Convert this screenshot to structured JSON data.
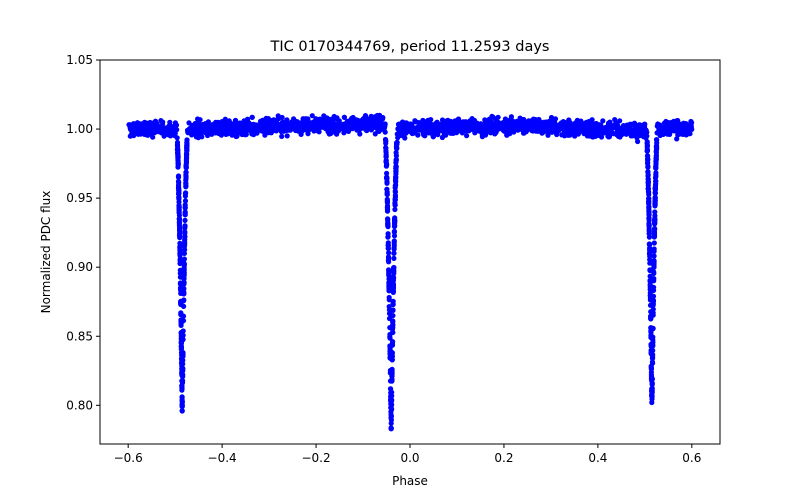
{
  "chart_data": {
    "type": "scatter",
    "title": "TIC 0170344769, period 11.2593 days",
    "xlabel": "Phase",
    "ylabel": "Normalized PDC flux",
    "xlim": [
      -0.66,
      0.66
    ],
    "ylim": [
      0.772,
      1.05
    ],
    "xticks": [
      -0.6,
      -0.4,
      -0.2,
      0.0,
      0.2,
      0.4,
      0.6
    ],
    "xtick_labels": [
      "−0.6",
      "−0.4",
      "−0.2",
      "0.0",
      "0.2",
      "0.4",
      "0.6"
    ],
    "yticks": [
      0.8,
      0.85,
      0.9,
      0.95,
      1.0,
      1.05
    ],
    "ytick_labels": [
      "0.80",
      "0.85",
      "0.90",
      "0.95",
      "1.00",
      "1.05"
    ],
    "grid": false,
    "series": [
      {
        "name": "PDC flux",
        "color": "#0000ff",
        "phase_range": [
          -0.6,
          0.6
        ],
        "baseline": 1.0,
        "scatter_sigma": 0.007,
        "eclipses": [
          {
            "center": -0.485,
            "min_flux": 0.798,
            "half_width": 0.012
          },
          {
            "center": -0.04,
            "min_flux": 0.782,
            "half_width": 0.014
          },
          {
            "center": 0.515,
            "min_flux": 0.798,
            "half_width": 0.012
          }
        ],
        "gaps": [
          [
            -0.468,
            -0.465
          ],
          [
            -0.007,
            -0.003
          ],
          [
            0.533,
            0.537
          ]
        ]
      }
    ]
  }
}
